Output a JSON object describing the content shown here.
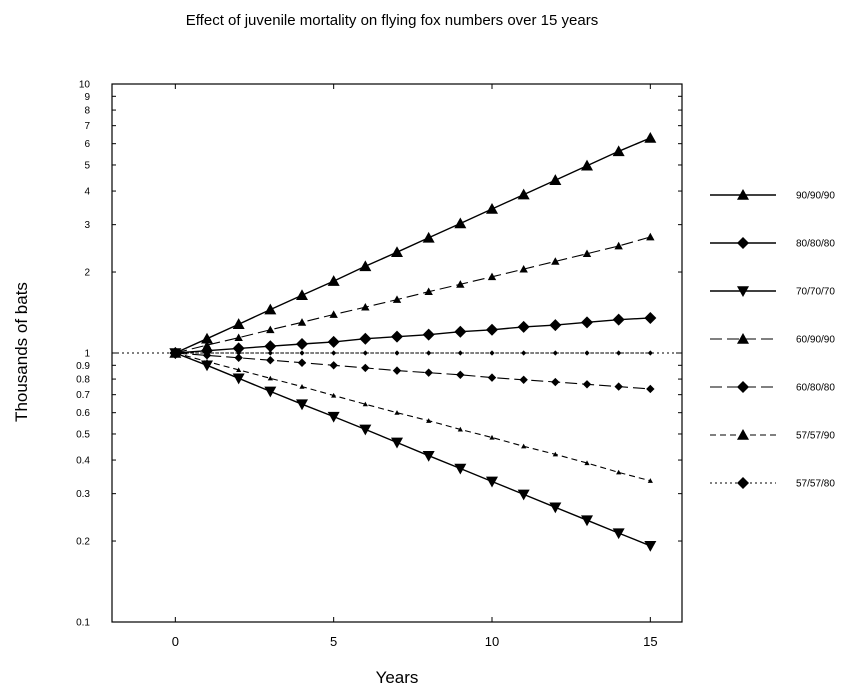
{
  "chart_data": {
    "type": "line",
    "title": "Effect of juvenile mortality on flying fox numbers over 15 years",
    "xlabel": "Years",
    "ylabel": "Thousands of bats",
    "xlim": [
      -2,
      16
    ],
    "ylim": [
      0.1,
      10
    ],
    "yscale": "log",
    "xticks": [
      0,
      5,
      10,
      15
    ],
    "xtick_labels": [
      "0",
      "5",
      "10",
      "15"
    ],
    "yticks": [
      0.1,
      0.2,
      0.3,
      0.4,
      0.5,
      0.6,
      0.7,
      0.8,
      0.9,
      1,
      2,
      3,
      4,
      5,
      6,
      7,
      8,
      9,
      10
    ],
    "ytick_labels": [
      "0.1",
      "0.2",
      "0.3",
      "0.4",
      "0.5",
      "0.6",
      "0.7",
      "0.8",
      "0.9",
      "1",
      "2",
      "3",
      "4",
      "5",
      "6",
      "7",
      "8",
      "9",
      "10"
    ],
    "grid": false,
    "reference_line": 1,
    "legend_position": "right",
    "x": [
      0,
      1,
      2,
      3,
      4,
      5,
      6,
      7,
      8,
      9,
      10,
      11,
      12,
      13,
      14,
      15
    ],
    "series": [
      {
        "name": "90/90/90",
        "marker": "triangle-up",
        "marker_size": "large",
        "line": "solid",
        "values": [
          1,
          1.13,
          1.28,
          1.45,
          1.64,
          1.85,
          2.1,
          2.37,
          2.68,
          3.03,
          3.43,
          3.88,
          4.39,
          4.97,
          5.62,
          6.3
        ]
      },
      {
        "name": "80/80/80",
        "marker": "diamond",
        "marker_size": "large",
        "line": "solid",
        "values": [
          1,
          1.02,
          1.04,
          1.06,
          1.08,
          1.1,
          1.13,
          1.15,
          1.17,
          1.2,
          1.22,
          1.25,
          1.27,
          1.3,
          1.33,
          1.35
        ]
      },
      {
        "name": "70/70/70",
        "marker": "triangle-down",
        "marker_size": "large",
        "line": "solid",
        "values": [
          1,
          0.9,
          0.805,
          0.72,
          0.645,
          0.58,
          0.52,
          0.465,
          0.415,
          0.372,
          0.333,
          0.298,
          0.267,
          0.239,
          0.214,
          0.192
        ]
      },
      {
        "name": "60/90/90",
        "marker": "triangle-up",
        "marker_size": "small",
        "line": "long-dash",
        "values": [
          1,
          1.07,
          1.14,
          1.22,
          1.3,
          1.39,
          1.48,
          1.58,
          1.69,
          1.8,
          1.92,
          2.05,
          2.19,
          2.34,
          2.5,
          2.7
        ]
      },
      {
        "name": "60/80/80",
        "marker": "diamond",
        "marker_size": "small",
        "line": "long-dash",
        "values": [
          1,
          0.98,
          0.96,
          0.94,
          0.92,
          0.9,
          0.88,
          0.86,
          0.845,
          0.83,
          0.81,
          0.795,
          0.78,
          0.765,
          0.75,
          0.735
        ]
      },
      {
        "name": "57/57/90",
        "marker": "triangle-up",
        "marker_size": "tiny",
        "line": "short-dash",
        "values": [
          1,
          0.93,
          0.865,
          0.805,
          0.75,
          0.695,
          0.645,
          0.6,
          0.56,
          0.52,
          0.485,
          0.45,
          0.42,
          0.39,
          0.36,
          0.335
        ]
      },
      {
        "name": "57/57/80",
        "marker": "diamond",
        "marker_size": "tiny",
        "line": "dotted",
        "values": [
          1,
          1,
          1,
          1,
          1,
          1,
          1,
          1,
          1,
          1,
          1,
          1,
          1,
          1,
          1,
          1
        ]
      }
    ]
  }
}
